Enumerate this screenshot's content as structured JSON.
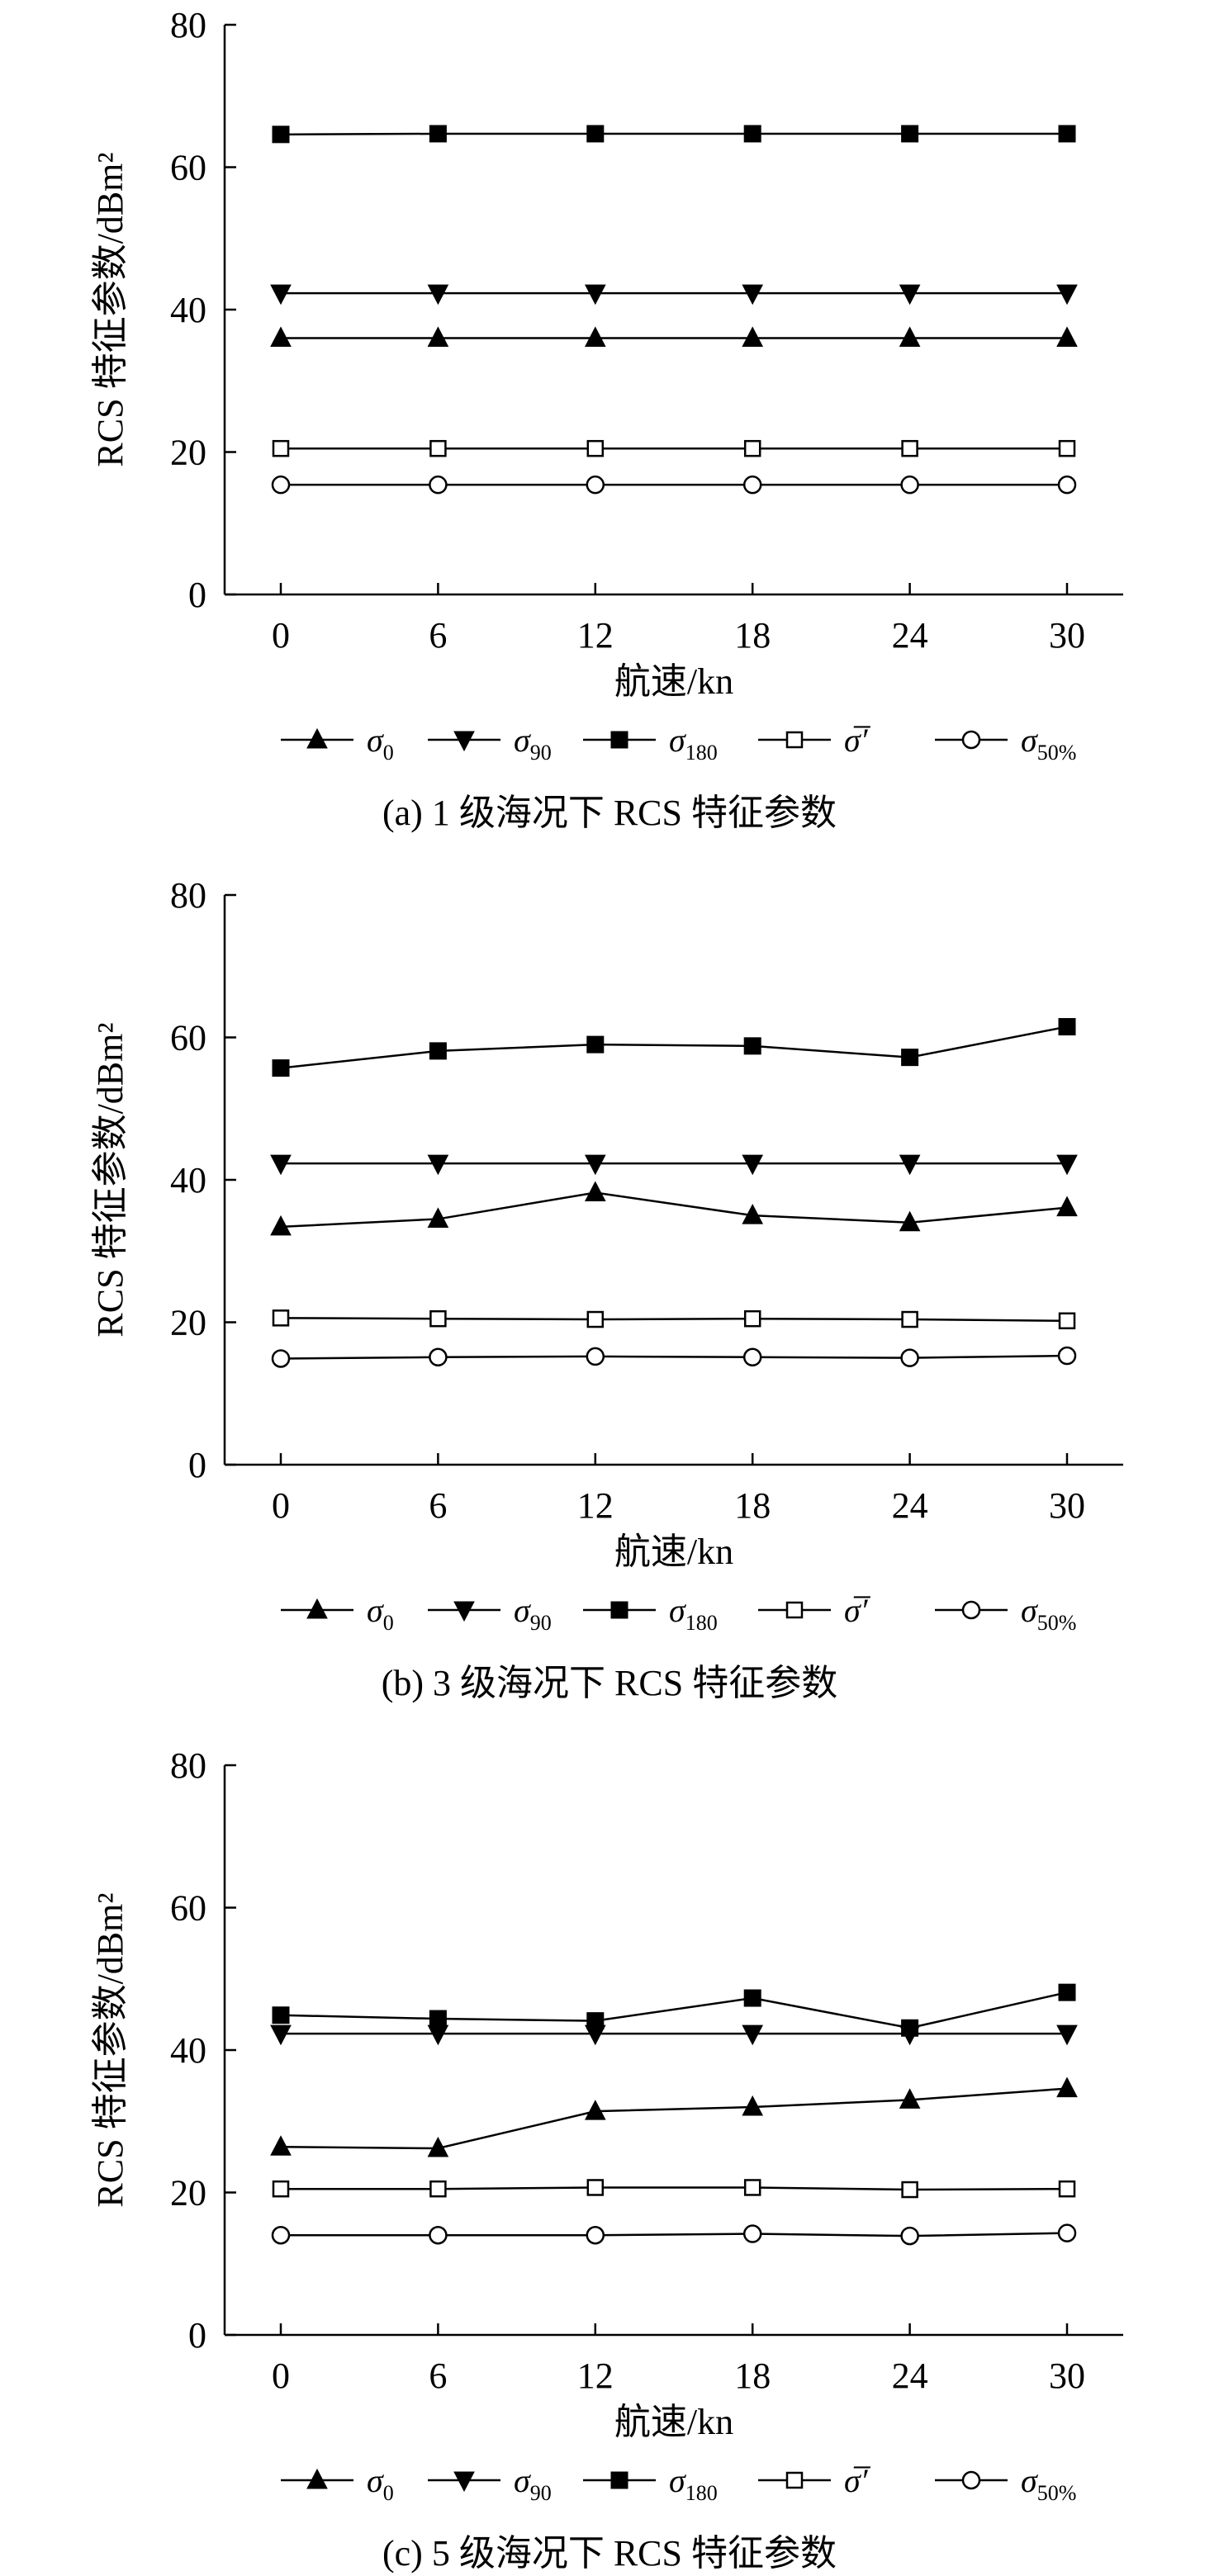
{
  "legend": {
    "items": [
      {
        "symbol": "triangle-up-filled",
        "base": "σ",
        "sub": "0",
        "prime": ""
      },
      {
        "symbol": "triangle-down-filled",
        "base": "σ",
        "sub": "90",
        "prime": ""
      },
      {
        "symbol": "square-filled",
        "base": "σ",
        "sub": "180",
        "prime": ""
      },
      {
        "symbol": "square-open",
        "base": "σ̅",
        "sub": "",
        "prime": "′"
      },
      {
        "symbol": "circle-open",
        "base": "σ",
        "sub": "50%",
        "prime": ""
      }
    ]
  },
  "chart_data": [
    {
      "type": "line",
      "caption": "(a) 1 级海况下 RCS 特征参数",
      "xlabel": "航速/kn",
      "ylabel": "RCS 特征参数/dBm²",
      "x": [
        0,
        6,
        12,
        18,
        24,
        30
      ],
      "xticks": [
        "0",
        "6",
        "12",
        "18",
        "24",
        "30"
      ],
      "yticks": [
        "0",
        "20",
        "40",
        "60",
        "80"
      ],
      "ylim": [
        0,
        80
      ],
      "grid": false,
      "legend_position": "bottom",
      "series": [
        {
          "name": "σ0",
          "marker": "triangle-up-filled",
          "values": [
            36.0,
            36.0,
            36.0,
            36.0,
            36.0,
            36.0
          ]
        },
        {
          "name": "σ90",
          "marker": "triangle-down-filled",
          "values": [
            42.3,
            42.3,
            42.3,
            42.3,
            42.3,
            42.3
          ]
        },
        {
          "name": "σ180",
          "marker": "square-filled",
          "values": [
            64.6,
            64.7,
            64.7,
            64.7,
            64.7,
            64.7
          ]
        },
        {
          "name": "σ̅′",
          "marker": "square-open",
          "values": [
            20.5,
            20.5,
            20.5,
            20.5,
            20.5,
            20.5
          ]
        },
        {
          "name": "σ50%",
          "marker": "circle-open",
          "values": [
            15.4,
            15.4,
            15.4,
            15.4,
            15.4,
            15.4
          ]
        }
      ]
    },
    {
      "type": "line",
      "caption": "(b) 3 级海况下 RCS 特征参数",
      "xlabel": "航速/kn",
      "ylabel": "RCS 特征参数/dBm²",
      "x": [
        0,
        6,
        12,
        18,
        24,
        30
      ],
      "xticks": [
        "0",
        "6",
        "12",
        "18",
        "24",
        "30"
      ],
      "yticks": [
        "0",
        "20",
        "40",
        "60",
        "80"
      ],
      "ylim": [
        0,
        80
      ],
      "grid": false,
      "legend_position": "bottom",
      "series": [
        {
          "name": "σ0",
          "marker": "triangle-up-filled",
          "values": [
            33.4,
            34.5,
            38.2,
            35.0,
            34.0,
            36.1
          ]
        },
        {
          "name": "σ90",
          "marker": "triangle-down-filled",
          "values": [
            42.3,
            42.3,
            42.3,
            42.3,
            42.3,
            42.3
          ]
        },
        {
          "name": "σ180",
          "marker": "square-filled",
          "values": [
            55.7,
            58.1,
            59.0,
            58.8,
            57.2,
            61.5
          ]
        },
        {
          "name": "σ̅′",
          "marker": "square-open",
          "values": [
            20.6,
            20.5,
            20.4,
            20.5,
            20.4,
            20.2
          ]
        },
        {
          "name": "σ50%",
          "marker": "circle-open",
          "values": [
            14.9,
            15.1,
            15.2,
            15.1,
            15.0,
            15.3
          ]
        }
      ]
    },
    {
      "type": "line",
      "caption": "(c) 5 级海况下 RCS 特征参数",
      "xlabel": "航速/kn",
      "ylabel": "RCS 特征参数/dBm²",
      "x": [
        0,
        6,
        12,
        18,
        24,
        30
      ],
      "xticks": [
        "0",
        "6",
        "12",
        "18",
        "24",
        "30"
      ],
      "yticks": [
        "0",
        "20",
        "40",
        "60",
        "80"
      ],
      "ylim": [
        0,
        80
      ],
      "grid": false,
      "legend_position": "bottom",
      "series": [
        {
          "name": "σ0",
          "marker": "triangle-up-filled",
          "values": [
            26.4,
            26.2,
            31.4,
            32.0,
            33.0,
            34.6
          ]
        },
        {
          "name": "σ90",
          "marker": "triangle-down-filled",
          "values": [
            42.3,
            42.3,
            42.3,
            42.3,
            42.3,
            42.3
          ]
        },
        {
          "name": "σ180",
          "marker": "square-filled",
          "values": [
            44.9,
            44.4,
            44.1,
            47.3,
            43.1,
            48.1
          ]
        },
        {
          "name": "σ̅′",
          "marker": "square-open",
          "values": [
            20.5,
            20.5,
            20.7,
            20.7,
            20.4,
            20.5
          ]
        },
        {
          "name": "σ50%",
          "marker": "circle-open",
          "values": [
            14.0,
            14.0,
            14.0,
            14.2,
            13.9,
            14.3
          ]
        }
      ]
    }
  ]
}
